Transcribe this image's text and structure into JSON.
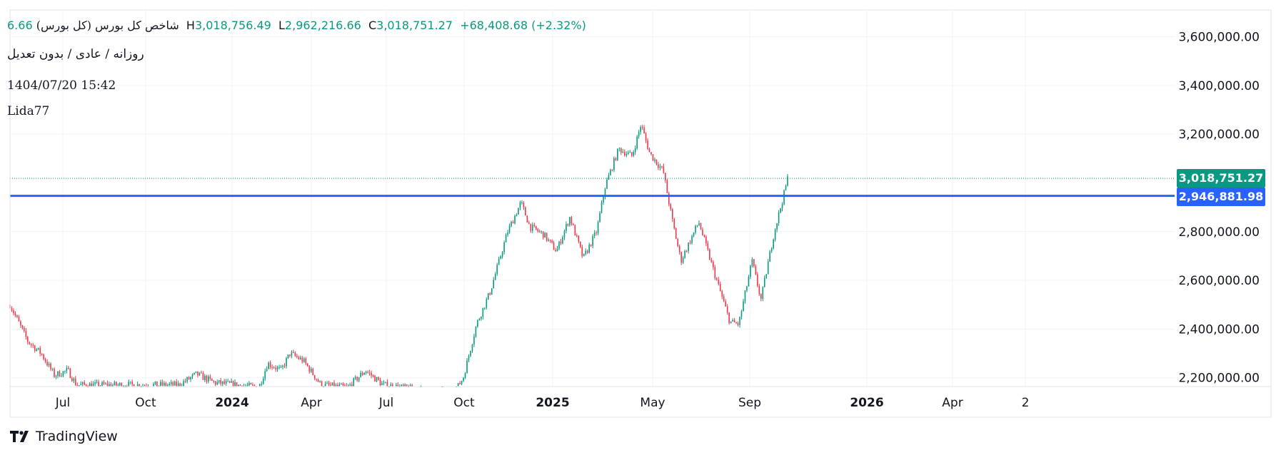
{
  "header": {
    "title_fa": "شاخص کل بورس (کل بورس)",
    "open_fragment": "6.66",
    "high_key": "H",
    "high": "3,018,756.49",
    "low_key": "L",
    "low": "2,962,216.66",
    "close_key": "C",
    "close": "3,018,751.27",
    "change": "+68,408.68 (+2.32%)",
    "settings_line": "روزانه / عادی / بدون تعدیل",
    "timestamp": "1404/07/20 15:42",
    "author": "Lida77"
  },
  "price_tags": {
    "last": "3,018,751.27",
    "line": "2,946,881.98"
  },
  "brand": {
    "name": "TradingView"
  },
  "colors": {
    "up": "#089981",
    "down": "#f23645",
    "hline": "#2962ff",
    "grid": "#f0f3fa"
  },
  "chart_data": {
    "type": "candlestick",
    "y_ticks": [
      "3,600,000.00",
      "3,400,000.00",
      "3,200,000.00",
      "2,800,000.00",
      "2,600,000.00",
      "2,400,000.00",
      "2,200,000.00"
    ],
    "x_ticks": [
      {
        "label": "Jul",
        "bold": false
      },
      {
        "label": "Oct",
        "bold": false
      },
      {
        "label": "2024",
        "bold": true
      },
      {
        "label": "Apr",
        "bold": false
      },
      {
        "label": "Jul",
        "bold": false
      },
      {
        "label": "Oct",
        "bold": false
      },
      {
        "label": "2025",
        "bold": true
      },
      {
        "label": "May",
        "bold": false
      },
      {
        "label": "Sep",
        "bold": false
      },
      {
        "label": "2026",
        "bold": true
      },
      {
        "label": "Apr",
        "bold": false
      },
      {
        "label": "2",
        "bold": false
      }
    ],
    "ylim": [
      2180000,
      3700000
    ],
    "horizontal_line": 2946881.98,
    "last_price": 3018751.27,
    "anchors": [
      [
        0,
        2500000
      ],
      [
        0.02,
        2350000
      ],
      [
        0.035,
        2300000
      ],
      [
        0.05,
        2210000
      ],
      [
        0.065,
        2230000
      ],
      [
        0.075,
        2170000
      ],
      [
        0.19,
        2170000
      ],
      [
        0.21,
        2215000
      ],
      [
        0.23,
        2180000
      ],
      [
        0.28,
        2160000
      ],
      [
        0.29,
        2260000
      ],
      [
        0.305,
        2230000
      ],
      [
        0.315,
        2300000
      ],
      [
        0.33,
        2270000
      ],
      [
        0.35,
        2170000
      ],
      [
        0.38,
        2160000
      ],
      [
        0.4,
        2230000
      ],
      [
        0.42,
        2170000
      ],
      [
        0.48,
        2140000
      ],
      [
        0.5,
        2140000
      ],
      [
        0.51,
        2200000
      ],
      [
        0.525,
        2420000
      ],
      [
        0.54,
        2550000
      ],
      [
        0.56,
        2800000
      ],
      [
        0.575,
        2920000
      ],
      [
        0.585,
        2820000
      ],
      [
        0.6,
        2790000
      ],
      [
        0.615,
        2720000
      ],
      [
        0.63,
        2860000
      ],
      [
        0.645,
        2690000
      ],
      [
        0.66,
        2800000
      ],
      [
        0.67,
        2990000
      ],
      [
        0.685,
        3140000
      ],
      [
        0.7,
        3110000
      ],
      [
        0.71,
        3240000
      ],
      [
        0.72,
        3120000
      ],
      [
        0.735,
        3050000
      ],
      [
        0.745,
        2850000
      ],
      [
        0.755,
        2680000
      ],
      [
        0.775,
        2840000
      ],
      [
        0.79,
        2660000
      ],
      [
        0.81,
        2430000
      ],
      [
        0.82,
        2420000
      ],
      [
        0.835,
        2680000
      ],
      [
        0.845,
        2520000
      ],
      [
        0.86,
        2800000
      ],
      [
        0.87,
        2940000
      ],
      [
        0.875,
        3018000
      ]
    ]
  }
}
